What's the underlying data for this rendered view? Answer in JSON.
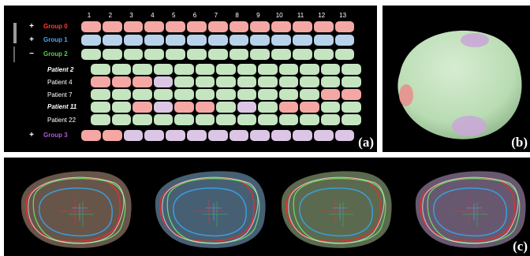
{
  "panel_labels": {
    "a": "(a)",
    "b": "(b)",
    "c": "(c)"
  },
  "columns": [
    "1",
    "2",
    "3",
    "4",
    "5",
    "6",
    "7",
    "8",
    "9",
    "10",
    "11",
    "12",
    "13"
  ],
  "groups": [
    {
      "toggle": "+",
      "label": "Group 0",
      "color": "#ff3b3b"
    },
    {
      "toggle": "+",
      "label": "Group 1",
      "color": "#4aa3ff"
    },
    {
      "toggle": "−",
      "label": "Group 2",
      "color": "#55d24a"
    },
    {
      "toggle": "+",
      "label": "Group 3",
      "color": "#b05ad0"
    }
  ],
  "patients": [
    {
      "label": "Patient 2",
      "style": "bold-italic"
    },
    {
      "label": "Patient 4",
      "style": "normal"
    },
    {
      "label": "Patient 7",
      "style": "normal"
    },
    {
      "label": "Patient 11",
      "style": "bold-italic"
    },
    {
      "label": "Patient 22",
      "style": "normal"
    }
  ],
  "cell_colors": {
    "r": "#f5a7a4",
    "b": "#b8d2ec",
    "g": "#c4e5c0",
    "p": "#dcc6e6"
  },
  "grid_rows": {
    "group0": [
      "r",
      "r",
      "r",
      "r",
      "r",
      "r",
      "r",
      "r",
      "r",
      "r",
      "r",
      "r",
      "r"
    ],
    "group1": [
      "b",
      "b",
      "b",
      "b",
      "b",
      "b",
      "b",
      "b",
      "b",
      "b",
      "b",
      "b",
      "b"
    ],
    "group2": [
      "g",
      "g",
      "g",
      "g",
      "g",
      "g",
      "g",
      "g",
      "g",
      "g",
      "g",
      "g",
      "g"
    ],
    "patient2": [
      "g",
      "g",
      "g",
      "g",
      "g",
      "g",
      "g",
      "g",
      "g",
      "g",
      "g",
      "g",
      "g"
    ],
    "patient4": [
      "r",
      "r",
      "r",
      "p",
      "g",
      "g",
      "g",
      "g",
      "g",
      "g",
      "g",
      "g",
      "g"
    ],
    "patient7": [
      "g",
      "g",
      "g",
      "g",
      "g",
      "g",
      "g",
      "g",
      "g",
      "g",
      "g",
      "r",
      "r"
    ],
    "patient11": [
      "g",
      "g",
      "r",
      "p",
      "r",
      "r",
      "g",
      "p",
      "g",
      "r",
      "r",
      "g",
      "g"
    ],
    "patient22": [
      "g",
      "g",
      "g",
      "g",
      "g",
      "g",
      "g",
      "g",
      "g",
      "g",
      "g",
      "g",
      "g"
    ],
    "group3": [
      "r",
      "r",
      "p",
      "p",
      "p",
      "p",
      "p",
      "p",
      "p",
      "p",
      "p",
      "p",
      "p"
    ]
  }
}
